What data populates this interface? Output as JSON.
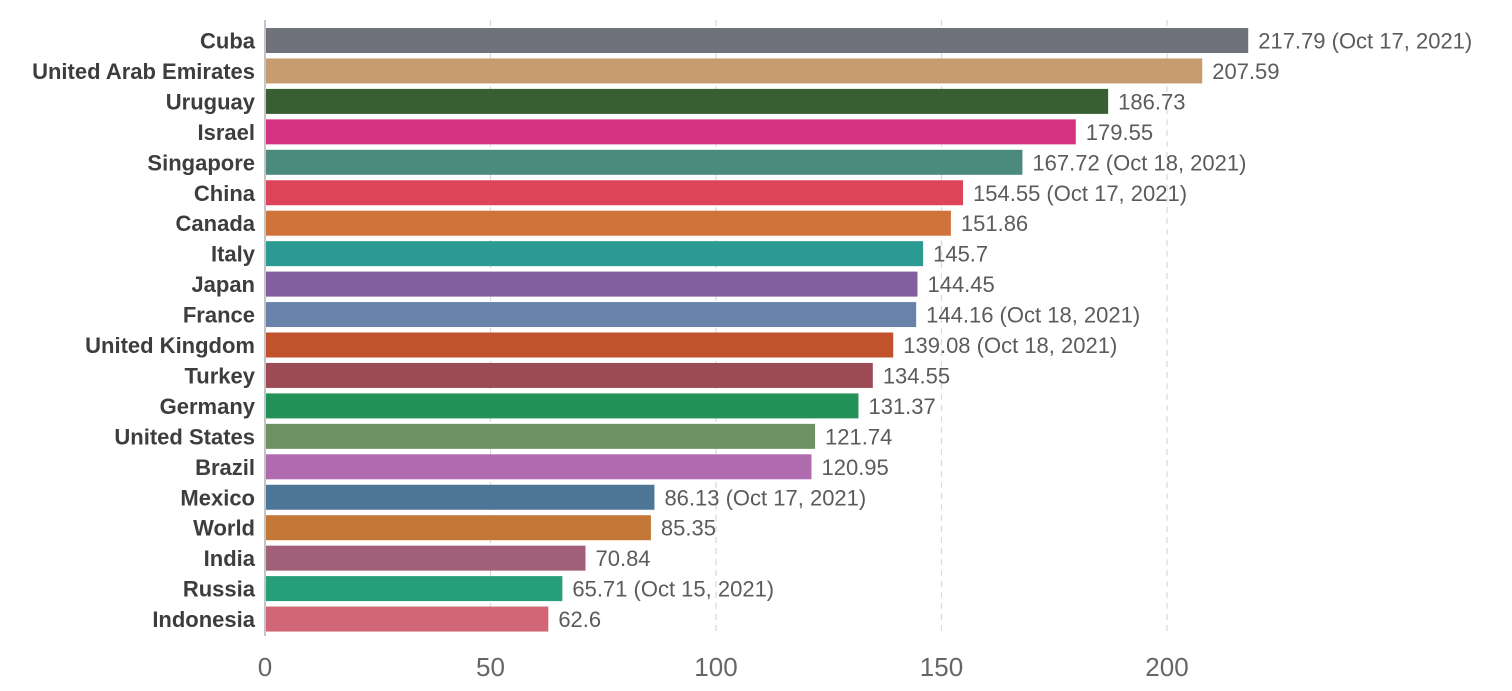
{
  "chart_data": {
    "type": "bar",
    "orientation": "horizontal",
    "title": "",
    "xlabel": "",
    "ylabel": "",
    "xlim": [
      0,
      220
    ],
    "xticks": [
      0,
      50,
      100,
      150,
      200
    ],
    "grid": true,
    "categories": [
      "Cuba",
      "United Arab Emirates",
      "Uruguay",
      "Israel",
      "Singapore",
      "China",
      "Canada",
      "Italy",
      "Japan",
      "France",
      "United Kingdom",
      "Turkey",
      "Germany",
      "United States",
      "Brazil",
      "Mexico",
      "World",
      "India",
      "Russia",
      "Indonesia"
    ],
    "values": [
      217.79,
      207.59,
      186.73,
      179.55,
      167.72,
      154.55,
      151.86,
      145.7,
      144.45,
      144.16,
      139.08,
      134.55,
      131.37,
      121.74,
      120.95,
      86.13,
      85.35,
      70.84,
      65.71,
      62.6
    ],
    "value_labels": [
      "217.79 (Oct 17, 2021)",
      "207.59",
      "186.73",
      "179.55",
      "167.72 (Oct 18, 2021)",
      "154.55 (Oct 17, 2021)",
      "151.86",
      "145.7",
      "144.45",
      "144.16 (Oct 18, 2021)",
      "139.08 (Oct 18, 2021)",
      "134.55",
      "131.37",
      "121.74",
      "120.95",
      "86.13 (Oct 17, 2021)",
      "85.35",
      "70.84",
      "65.71 (Oct 15, 2021)",
      "62.6"
    ],
    "colors": [
      "#6f727a",
      "#c69c6e",
      "#3a5e33",
      "#d63282",
      "#4a8b7e",
      "#dd4459",
      "#cf733a",
      "#2a9a93",
      "#835ea1",
      "#6a83ab",
      "#c0522c",
      "#9d4c56",
      "#249158",
      "#6f9263",
      "#af6bad",
      "#4d7596",
      "#c47837",
      "#a06079",
      "#279e7a",
      "#d06676"
    ]
  }
}
